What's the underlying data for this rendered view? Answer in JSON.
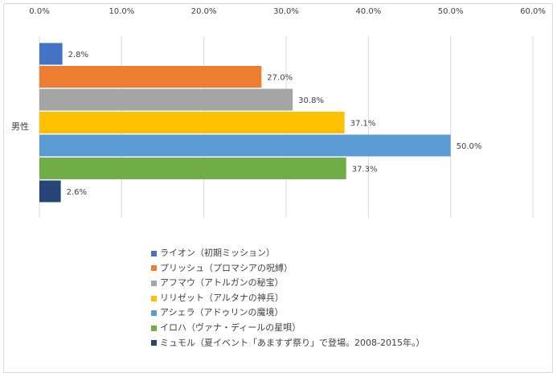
{
  "chart_data": {
    "type": "bar",
    "orientation": "horizontal",
    "categories": [
      "男性"
    ],
    "series": [
      {
        "name": "ライオン（初期ミッション）",
        "values": [
          2.8
        ],
        "label": "2.8%",
        "color": "#4472c4"
      },
      {
        "name": "プリッシュ（プロマシアの呪縛）",
        "values": [
          27.0
        ],
        "label": "27.0%",
        "color": "#ed7d31"
      },
      {
        "name": "アフマウ（アトルガンの秘宝）",
        "values": [
          30.8
        ],
        "label": "30.8%",
        "color": "#a5a5a5"
      },
      {
        "name": "リリゼット（アルタナの神兵）",
        "values": [
          37.1
        ],
        "label": "37.1%",
        "color": "#ffc000"
      },
      {
        "name": "アシェラ（アドゥリンの魔境）",
        "values": [
          50.0
        ],
        "label": "50.0%",
        "color": "#5b9bd5"
      },
      {
        "name": "イロハ（ヴァナ・ディールの星唄）",
        "values": [
          37.3
        ],
        "label": "37.3%",
        "color": "#70ad47"
      },
      {
        "name": "ミュモル（夏イベント「あますず祭り」で登場。2008-2015年。）",
        "values": [
          2.6
        ],
        "label": "2.6%",
        "color": "#264478"
      }
    ],
    "xlim": [
      0,
      60
    ],
    "x_ticks": [
      0,
      10,
      20,
      30,
      40,
      50,
      60
    ],
    "x_tick_labels": [
      "0.0%",
      "10.0%",
      "20.0%",
      "30.0%",
      "40.0%",
      "50.0%",
      "60.0%"
    ],
    "x_axis_position": "top",
    "grid": true,
    "legend_position": "bottom"
  }
}
